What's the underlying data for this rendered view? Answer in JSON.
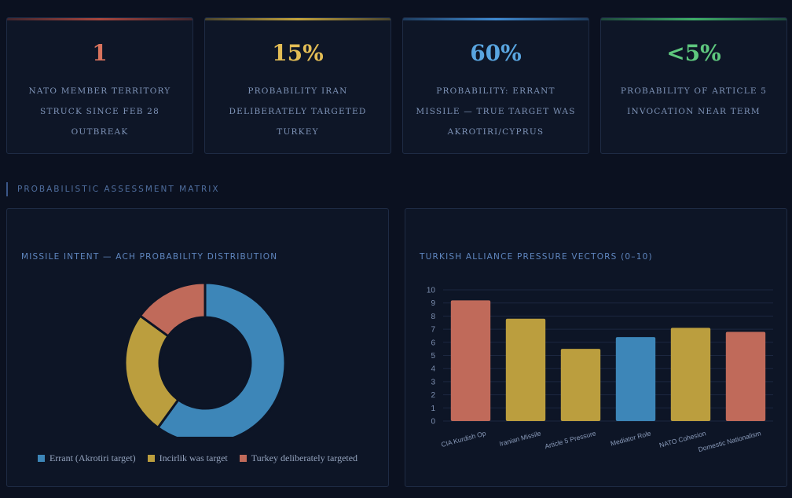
{
  "kpis": [
    {
      "value": "1",
      "label": "NATO member territory struck since Feb 28 outbreak",
      "color": "#d9735d",
      "bar": "#a8463d"
    },
    {
      "value": "15%",
      "label": "Probability Iran deliberately targeted Turkey",
      "color": "#e3bd55",
      "bar": "#c2a23c"
    },
    {
      "value": "60%",
      "label": "Probability: errant missile — true target was Akrotiri/Cyprus",
      "color": "#59a5e0",
      "bar": "#3f8ad0"
    },
    {
      "value": "<5%",
      "label": "Probability of Article 5 invocation near term",
      "color": "#5ec77e",
      "bar": "#3fae68"
    }
  ],
  "section": {
    "title": "PROBABILISTIC ASSESSMENT MATRIX"
  },
  "donut_panel": {
    "title": "MISSILE INTENT — ACH PROBABILITY DISTRIBUTION"
  },
  "bar_panel": {
    "title": "TURKISH ALLIANCE PRESSURE VECTORS (0–10)"
  },
  "chart_data": [
    {
      "type": "pie",
      "title": "MISSILE INTENT — ACH PROBABILITY DISTRIBUTION",
      "labels": [
        "Errant (Akrotiri target)",
        "Incirlik was target",
        "Turkey deliberately targeted"
      ],
      "values": [
        60,
        25,
        15
      ],
      "colors": [
        "#3d86b8",
        "#bb9e3e",
        "#c06a5a"
      ],
      "legend": "bottom"
    },
    {
      "type": "bar",
      "title": "TURKISH ALLIANCE PRESSURE VECTORS (0–10)",
      "categories": [
        "CIA Kurdish Op",
        "Iranian Missile",
        "Article 5 Pressure",
        "Mediator Role",
        "NATO Cohesion",
        "Domestic Nationalism"
      ],
      "values": [
        9.2,
        7.8,
        5.5,
        6.4,
        7.1,
        6.8
      ],
      "colors": [
        "#c06a5a",
        "#bb9e3e",
        "#bb9e3e",
        "#3d86b8",
        "#bb9e3e",
        "#c06a5a"
      ],
      "ylim": [
        0,
        10
      ],
      "yticks": [
        "0",
        "1",
        "2",
        "3",
        "4",
        "5",
        "6",
        "7",
        "8",
        "9",
        "10"
      ],
      "xlabel": "",
      "ylabel": ""
    }
  ]
}
